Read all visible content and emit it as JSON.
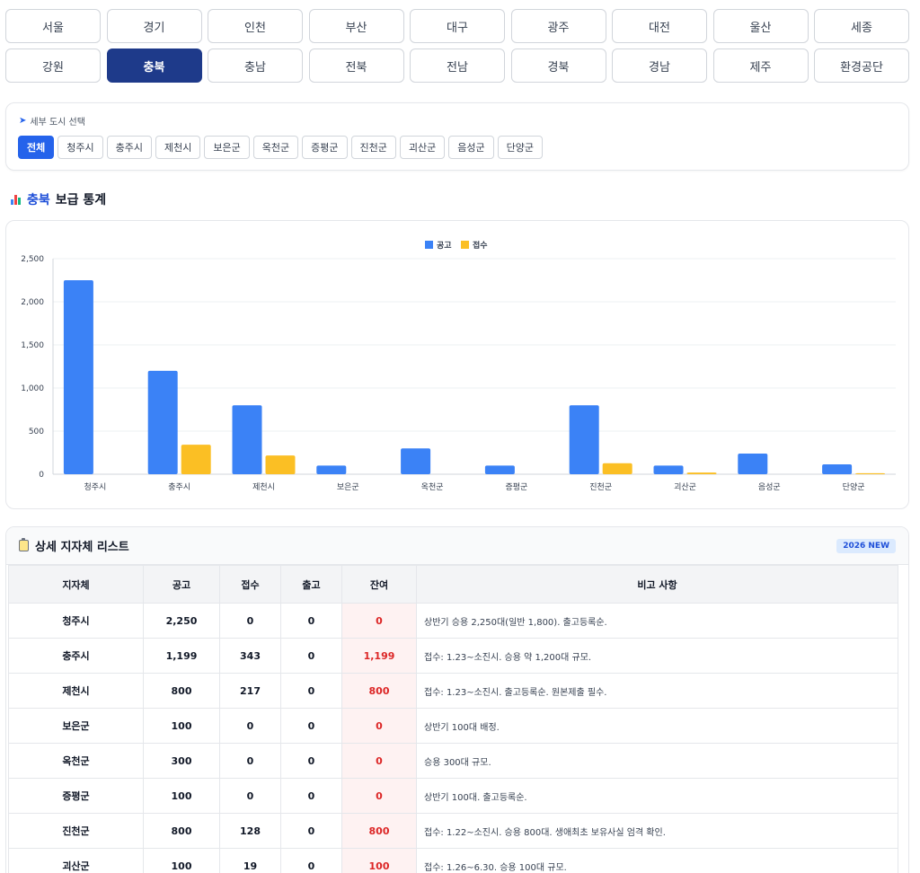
{
  "regions_row1": [
    "서울",
    "경기",
    "인천",
    "부산",
    "대구",
    "광주",
    "대전",
    "울산",
    "세종"
  ],
  "regions_row2": [
    "강원",
    "충북",
    "충남",
    "전북",
    "전남",
    "경북",
    "경남",
    "제주",
    "환경공단"
  ],
  "active_region": "충북",
  "sub_select": {
    "title": "세부 도시 선택",
    "chips": [
      "전체",
      "청주시",
      "충주시",
      "제천시",
      "보은군",
      "옥천군",
      "증평군",
      "진천군",
      "괴산군",
      "음성군",
      "단양군"
    ],
    "active": "전체"
  },
  "stats": {
    "region": "충북",
    "suffix": "보급 통계"
  },
  "chart_data": {
    "type": "bar",
    "categories": [
      "청주시",
      "충주시",
      "제천시",
      "보은군",
      "옥천군",
      "증평군",
      "진천군",
      "괴산군",
      "음성군",
      "단양군"
    ],
    "series": [
      {
        "name": "공고",
        "color": "#3b82f6",
        "values": [
          2250,
          1199,
          800,
          100,
          300,
          100,
          800,
          100,
          240,
          115
        ]
      },
      {
        "name": "접수",
        "color": "#fbbf24",
        "values": [
          0,
          343,
          217,
          0,
          0,
          0,
          128,
          19,
          0,
          12
        ]
      }
    ],
    "ylim": [
      0,
      2500
    ],
    "yticks": [
      "0",
      "500",
      "1,000",
      "1,500",
      "2,000",
      "2,500"
    ],
    "legend": "top-center",
    "grid": true
  },
  "list": {
    "title": "상세 지자체 리스트",
    "badge": "2026 NEW",
    "columns": [
      "지자체",
      "공고",
      "접수",
      "출고",
      "잔여",
      "비고 사항"
    ],
    "rows": [
      [
        "청주시",
        "2,250",
        "0",
        "0",
        "0",
        "상반기 승용 2,250대(일반 1,800). 출고등록순."
      ],
      [
        "충주시",
        "1,199",
        "343",
        "0",
        "1,199",
        "접수: 1.23~소진시. 승용 약 1,200대 규모."
      ],
      [
        "제천시",
        "800",
        "217",
        "0",
        "800",
        "접수: 1.23~소진시. 출고등록순. 원본제출 필수."
      ],
      [
        "보은군",
        "100",
        "0",
        "0",
        "0",
        "상반기 100대 배정."
      ],
      [
        "옥천군",
        "300",
        "0",
        "0",
        "0",
        "승용 300대 규모."
      ],
      [
        "증평군",
        "100",
        "0",
        "0",
        "0",
        "상반기 100대. 출고등록순."
      ],
      [
        "진천군",
        "800",
        "128",
        "0",
        "800",
        "접수: 1.22~소진시. 승용 800대. 생애최초 보유사실 엄격 확인."
      ],
      [
        "괴산군",
        "100",
        "19",
        "0",
        "100",
        "접수: 1.26~6.30. 승용 100대 규모."
      ]
    ]
  }
}
